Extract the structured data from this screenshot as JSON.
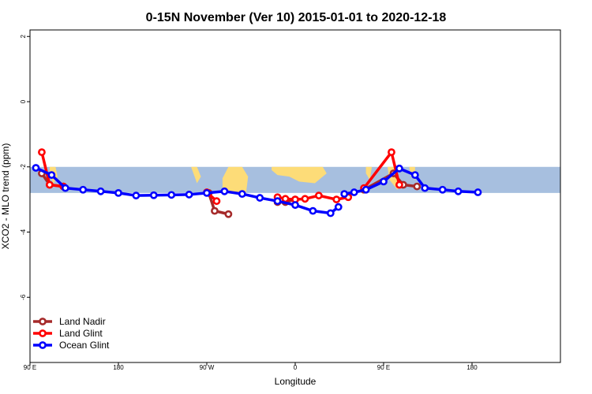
{
  "chart_data": {
    "type": "line",
    "title": "0-15N November (Ver 10)   2015-01-01 to 2020-12-18",
    "xlabel": "Longitude",
    "ylabel": "XCO2 - MLO trend (ppm)",
    "xlim": [
      -90,
      180
    ],
    "ylim": [
      -8,
      2.2
    ],
    "x_ticks": [
      {
        "value": -90,
        "label": "90 E"
      },
      {
        "value": -45,
        "label": "180"
      },
      {
        "value": 0,
        "label": "90 W"
      },
      {
        "value": 45,
        "label": "0"
      },
      {
        "value": 90,
        "label": "90 E"
      },
      {
        "value": 135,
        "label": "180"
      }
    ],
    "y_ticks": [
      2,
      0,
      -2,
      -4,
      -6
    ],
    "background_band": {
      "ymin": -2.8,
      "ymax": -2.0,
      "ocean_color": "#a7bfdf",
      "land_color": "#fddc78"
    },
    "legend_position": "bottom-left",
    "series": [
      {
        "name": "Land Nadir",
        "color": "#a52a2a",
        "segments": [
          [
            [
              -84,
              -2.2
            ],
            [
              -80,
              -2.55
            ],
            [
              -73,
              -2.6
            ]
          ],
          [
            [
              1,
              -2.8
            ],
            [
              4,
              -3.35
            ],
            [
              11,
              -3.45
            ]
          ],
          [
            [
              36,
              -3.08
            ],
            [
              40,
              -3.08
            ],
            [
              45,
              -3.0
            ]
          ],
          [
            [
              80,
              -2.7
            ],
            [
              95,
              -2.2
            ],
            [
              100,
              -2.55
            ],
            [
              107,
              -2.6
            ]
          ]
        ]
      },
      {
        "name": "Land Glint",
        "color": "#ff0000",
        "segments": [
          [
            [
              -84,
              -1.55
            ],
            [
              -80,
              -2.55
            ],
            [
              -73,
              -2.6
            ]
          ],
          [
            [
              0,
              -2.78
            ],
            [
              5,
              -3.05
            ]
          ],
          [
            [
              36,
              -2.93
            ],
            [
              40,
              -2.98
            ],
            [
              45,
              -3.0
            ],
            [
              50,
              -2.98
            ],
            [
              57,
              -2.88
            ],
            [
              66,
              -3.0
            ],
            [
              72,
              -2.93
            ]
          ],
          [
            [
              80,
              -2.65
            ],
            [
              94,
              -1.55
            ],
            [
              98,
              -2.55
            ]
          ]
        ]
      },
      {
        "name": "Ocean Glint",
        "color": "#0000ff",
        "segments": [
          [
            [
              -87,
              -2.03
            ],
            [
              -79,
              -2.25
            ],
            [
              -72,
              -2.65
            ],
            [
              -63,
              -2.7
            ],
            [
              -54,
              -2.75
            ],
            [
              -45,
              -2.8
            ],
            [
              -36,
              -2.88
            ],
            [
              -27,
              -2.87
            ],
            [
              -18,
              -2.86
            ],
            [
              -9,
              -2.85
            ],
            [
              0,
              -2.8
            ],
            [
              9,
              -2.75
            ],
            [
              18,
              -2.83
            ],
            [
              27,
              -2.95
            ],
            [
              36,
              -3.05
            ],
            [
              45,
              -3.17
            ],
            [
              54,
              -3.35
            ],
            [
              63,
              -3.42
            ],
            [
              67,
              -3.23
            ]
          ],
          [
            [
              70,
              -2.83
            ],
            [
              75,
              -2.78
            ],
            [
              81,
              -2.7
            ],
            [
              90,
              -2.45
            ],
            [
              98,
              -2.05
            ],
            [
              106,
              -2.25
            ],
            [
              111,
              -2.65
            ],
            [
              120,
              -2.7
            ],
            [
              128,
              -2.75
            ],
            [
              138,
              -2.78
            ]
          ]
        ]
      }
    ]
  }
}
